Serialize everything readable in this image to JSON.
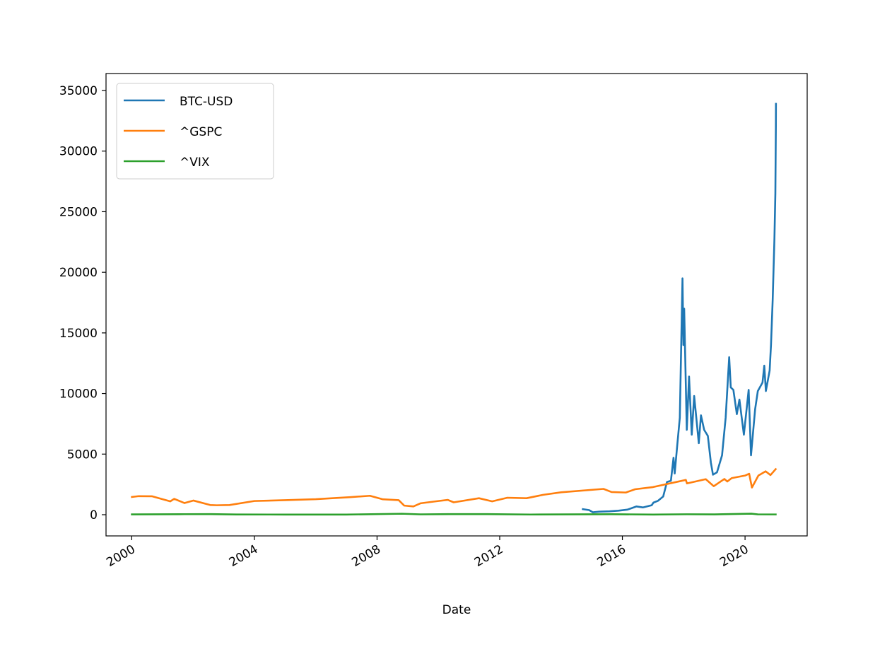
{
  "chart_data": {
    "type": "line",
    "title": "",
    "xlabel": "Date",
    "ylabel": "",
    "xlim": [
      "1999-03-01",
      "2022-01-10"
    ],
    "ylim": [
      -1750,
      36400
    ],
    "yticks": [
      0,
      5000,
      10000,
      15000,
      20000,
      25000,
      30000,
      35000
    ],
    "xticks": [
      "2000-01-01",
      "2004-01-01",
      "2008-01-01",
      "2012-01-01",
      "2016-01-01",
      "2020-01-01"
    ],
    "xtick_labels": [
      "2000",
      "2004",
      "2008",
      "2012",
      "2016",
      "2020"
    ],
    "ytick_labels": [
      "0",
      "5000",
      "10000",
      "15000",
      "20000",
      "25000",
      "30000",
      "35000"
    ],
    "grid": false,
    "legend_position": "top-left",
    "series": [
      {
        "name": "BTC-USD",
        "color": "#1f77b4",
        "x": [
          "2014-09-17",
          "2014-12-01",
          "2015-01-15",
          "2015-04-01",
          "2015-08-01",
          "2015-11-15",
          "2016-03-01",
          "2016-06-15",
          "2016-09-01",
          "2016-12-15",
          "2017-01-05",
          "2017-03-01",
          "2017-05-01",
          "2017-06-15",
          "2017-08-01",
          "2017-09-01",
          "2017-09-15",
          "2017-10-15",
          "2017-11-15",
          "2017-12-17",
          "2017-12-28",
          "2018-01-06",
          "2018-02-06",
          "2018-03-05",
          "2018-04-06",
          "2018-05-05",
          "2018-06-29",
          "2018-07-25",
          "2018-09-01",
          "2018-10-15",
          "2018-11-20",
          "2018-12-15",
          "2019-02-01",
          "2019-04-02",
          "2019-05-15",
          "2019-06-26",
          "2019-07-15",
          "2019-08-15",
          "2019-09-25",
          "2019-10-26",
          "2019-12-18",
          "2020-02-13",
          "2020-03-12",
          "2020-04-30",
          "2020-06-01",
          "2020-07-27",
          "2020-08-17",
          "2020-09-05",
          "2020-10-20",
          "2020-11-05",
          "2020-11-25",
          "2020-12-16",
          "2020-12-27",
          "2021-01-02",
          "2021-01-03"
        ],
        "values": [
          460,
          380,
          200,
          250,
          280,
          330,
          420,
          680,
          600,
          780,
          1000,
          1150,
          1500,
          2700,
          2800,
          4700,
          3400,
          5700,
          8000,
          19500,
          14000,
          17000,
          7000,
          11400,
          6600,
          9800,
          5900,
          8200,
          7000,
          6500,
          4300,
          3300,
          3500,
          4900,
          8000,
          13000,
          10500,
          10300,
          8300,
          9500,
          6600,
          10300,
          4900,
          8700,
          10200,
          10900,
          12300,
          10200,
          11900,
          14000,
          17700,
          22800,
          26500,
          32000,
          33900
        ]
      },
      {
        "name": "^GSPC",
        "color": "#ff7f0e",
        "x": [
          "2000-01-03",
          "2000-03-24",
          "2000-09-01",
          "2001-04-04",
          "2001-05-21",
          "2001-09-21",
          "2002-01-04",
          "2002-07-23",
          "2002-10-09",
          "2003-03-11",
          "2004-01-01",
          "2005-01-01",
          "2006-01-01",
          "2007-02-15",
          "2007-10-09",
          "2008-03-10",
          "2008-09-15",
          "2008-11-20",
          "2009-03-09",
          "2009-06-01",
          "2010-01-01",
          "2010-04-23",
          "2010-07-02",
          "2011-04-29",
          "2011-10-03",
          "2012-04-01",
          "2012-11-15",
          "2013-06-01",
          "2014-01-01",
          "2015-05-21",
          "2015-08-25",
          "2016-02-11",
          "2016-06-01",
          "2017-01-01",
          "2018-01-26",
          "2018-02-08",
          "2018-09-20",
          "2018-12-24",
          "2019-04-30",
          "2019-06-03",
          "2019-07-26",
          "2020-01-01",
          "2020-02-19",
          "2020-03-23",
          "2020-06-08",
          "2020-09-02",
          "2020-10-30",
          "2020-12-31"
        ],
        "values": [
          1460,
          1530,
          1520,
          1100,
          1310,
          960,
          1170,
          800,
          780,
          800,
          1130,
          1200,
          1280,
          1450,
          1560,
          1270,
          1200,
          750,
          680,
          940,
          1130,
          1220,
          1020,
          1360,
          1100,
          1400,
          1360,
          1640,
          1850,
          2130,
          1870,
          1830,
          2100,
          2280,
          2870,
          2580,
          2930,
          2350,
          2950,
          2740,
          3020,
          3230,
          3380,
          2240,
          3230,
          3580,
          3270,
          3760
        ]
      },
      {
        "name": "^VIX",
        "color": "#2ca02c",
        "x": [
          "2000-01-03",
          "2001-09-21",
          "2002-08-01",
          "2003-06-01",
          "2005-01-01",
          "2007-01-01",
          "2008-10-24",
          "2009-06-01",
          "2010-05-20",
          "2011-08-08",
          "2013-01-01",
          "2015-08-24",
          "2017-01-01",
          "2018-02-05",
          "2019-01-01",
          "2020-03-16",
          "2020-06-01",
          "2020-12-31"
        ],
        "values": [
          24,
          43,
          45,
          20,
          13,
          12,
          80,
          30,
          45,
          48,
          14,
          40,
          12,
          37,
          25,
          82,
          30,
          23
        ]
      }
    ]
  }
}
